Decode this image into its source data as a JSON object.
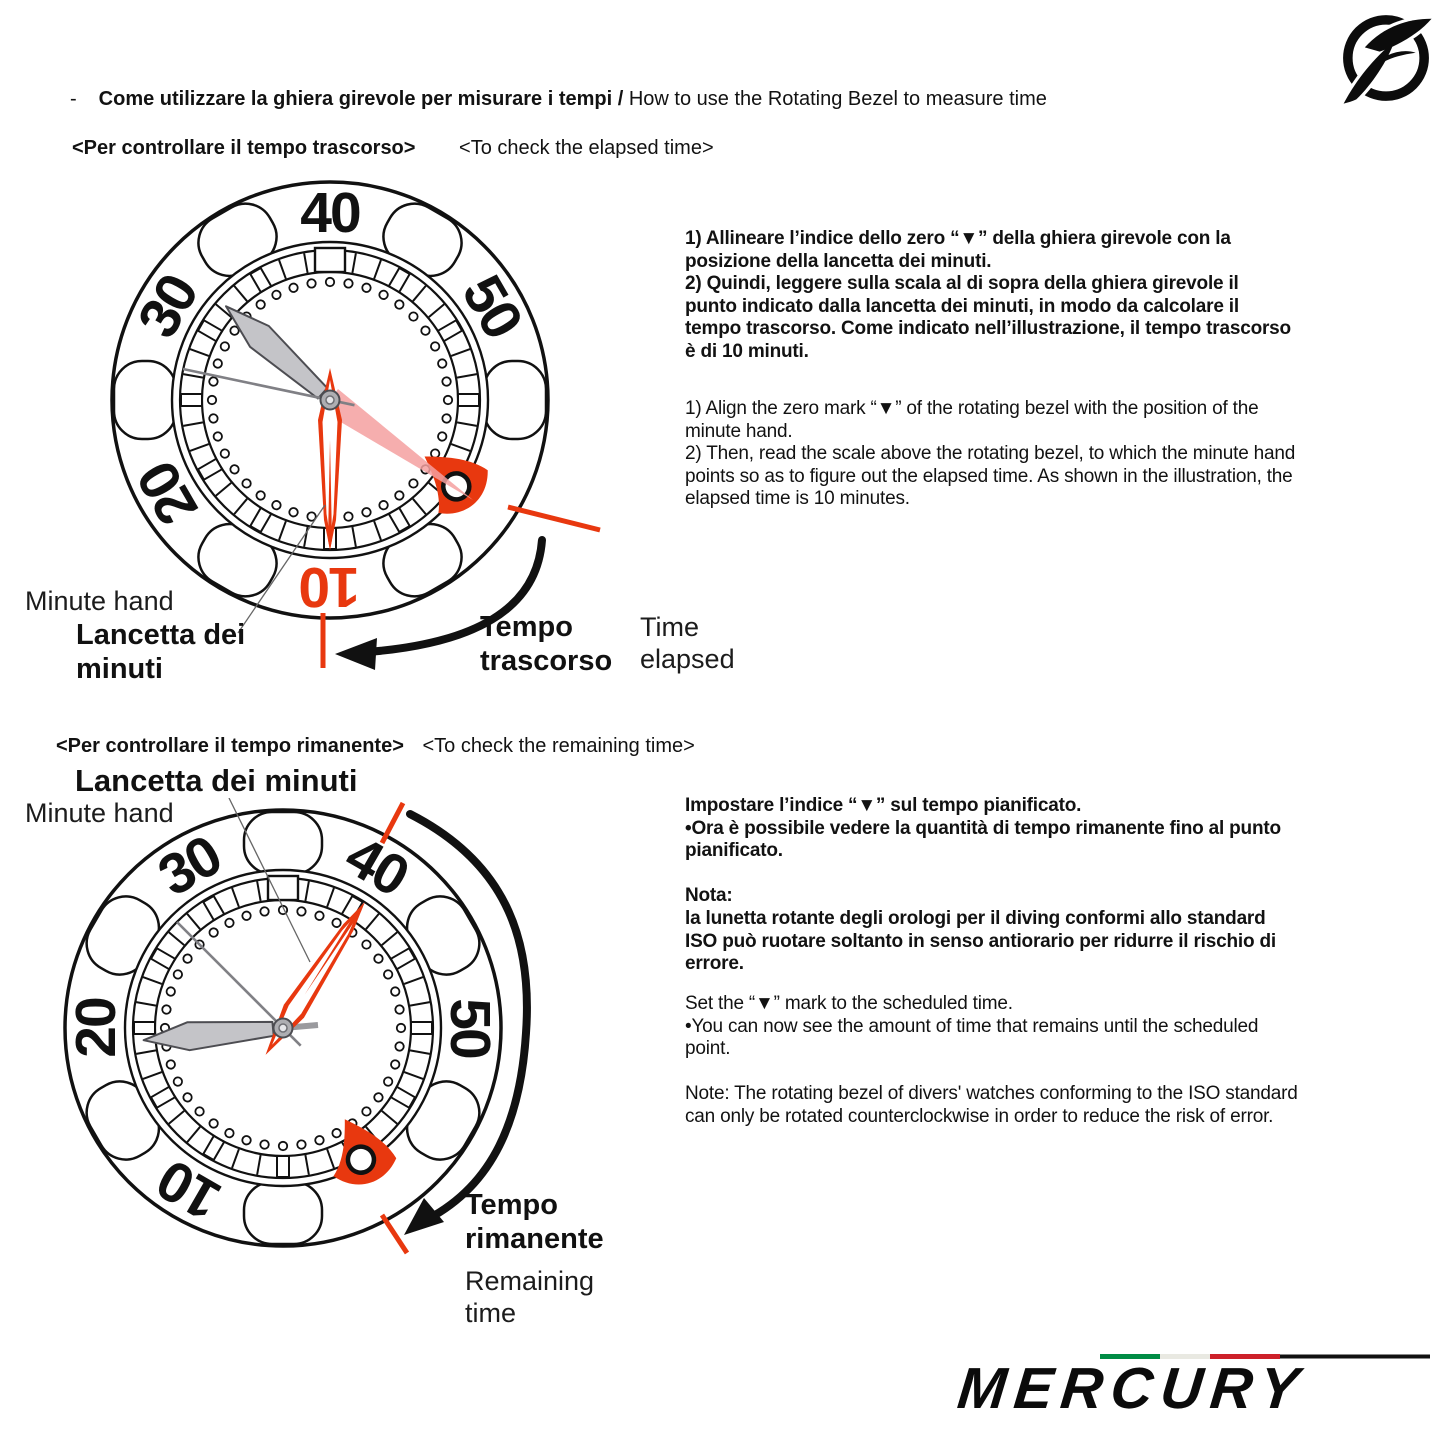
{
  "colors": {
    "red": "#e8380f",
    "pink": "#f5a0a0",
    "hand_gray": "#c4c4c8",
    "black": "#111111"
  },
  "header": {
    "dash": "-",
    "title_it": "Come utilizzare la ghiera girevole per misurare i tempi /",
    "title_en": "How to use the Rotating Bezel to measure time"
  },
  "section1": {
    "heading_it": "<Per controllare il tempo trascorso>",
    "heading_en": "<To check the elapsed time>",
    "body_it": "1) Allineare l’indice dello zero “▼” della ghiera girevole con la\nposizione della lancetta dei minuti.\n2) Quindi, leggere sulla scala al di sopra della ghiera girevole il\npunto indicato dalla lancetta dei minuti, in modo da calcolare il\ntempo trascorso. Come indicato nell’illustrazione, il tempo trascorso\nè di 10 minuti.",
    "body_en": "1) Align the zero mark “▼” of the rotating bezel with the position of the\nminute hand.\n2) Then, read the scale above the rotating bezel, to which the minute hand\npoints so as to figure out the elapsed time. As shown in the illustration, the\nelapsed time is 10 minutes.",
    "label_minute_hand_en": "Minute hand",
    "label_minute_hand_it": "Lancetta dei\nminuti",
    "label_elapsed_it": "Tempo\ntrascorso",
    "label_elapsed_en": "Time\nelapsed"
  },
  "section2": {
    "heading_it": "<Per controllare il tempo rimanente>",
    "heading_en": "<To check the remaining time>",
    "label_minute_hand_it": "Lancetta dei minuti",
    "label_minute_hand_en": "Minute hand",
    "body_it": "Impostare l’indice “▼” sul tempo pianificato.\n•Ora è possibile vedere la quantità di tempo rimanente fino al punto\npianificato.\n\nNota:\nla lunetta rotante degli orologi per il diving conformi allo standard\nISO può ruotare soltanto in senso antiorario per ridurre il rischio di\nerrore.",
    "body_en": "Set the “▼” mark to the scheduled time.\n•You can now see the amount of time that remains until the scheduled\npoint.\n\nNote: The rotating bezel of divers' watches conforming to the ISO standard\ncan only be rotated counterclockwise in order to reduce the risk of error.",
    "label_remaining_it": "Tempo\nrimanente",
    "label_remaining_en": "Remaining\ntime"
  },
  "bezel": {
    "n10": "10",
    "n20": "20",
    "n30": "30",
    "n40": "40",
    "n50": "50"
  },
  "footer": {
    "brand": "MERCURY"
  }
}
